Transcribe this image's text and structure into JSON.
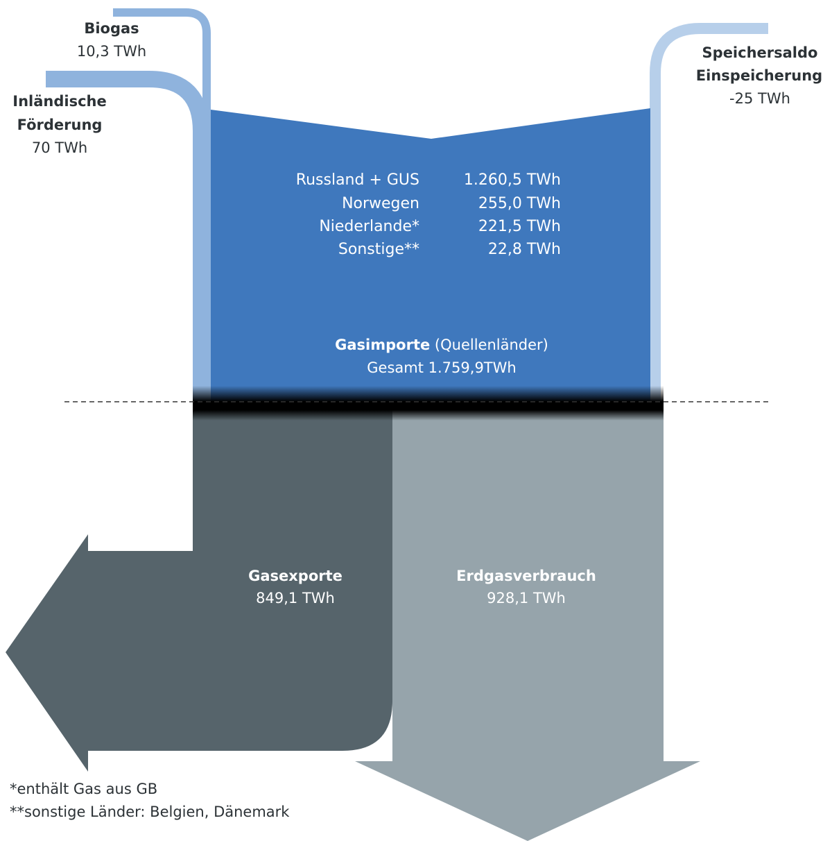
{
  "colors": {
    "inflow_light": "#8fb3dd",
    "inflow_pale": "#b7cfea",
    "imports": "#3f78bd",
    "exports": "#56646b",
    "consumption": "#96a4ab",
    "text_dark": "#2c3236",
    "text_light": "#ffffff"
  },
  "inflows": {
    "biogas": {
      "title": "Biogas",
      "value": "10,3 TWh"
    },
    "domestic": {
      "title_line1": "Inländische",
      "title_line2": "Förderung",
      "value": "70 TWh"
    },
    "storage": {
      "title_line1": "Speichersaldo",
      "title_line2": "Einspeicherung",
      "value": "-25 TWh"
    }
  },
  "imports": {
    "sources": [
      {
        "name": "Russland  + GUS",
        "value": "1.260,5 TWh"
      },
      {
        "name": "Norwegen",
        "value": "255,0 TWh"
      },
      {
        "name": "Niederlande*",
        "value": "221,5 TWh"
      },
      {
        "name": "Sonstige**",
        "value": "22,8 TWh"
      }
    ],
    "title_bold": "Gasimporte",
    "title_rest": " (Quellenländer)",
    "total": "Gesamt 1.759,9TWh"
  },
  "outflows": {
    "exports": {
      "title": "Gasexporte",
      "value": "849,1 TWh"
    },
    "consumption": {
      "title": "Erdgasverbrauch",
      "value": "928,1 TWh"
    }
  },
  "footnotes": [
    "*enthält Gas aus GB",
    "**sonstige Länder: Belgien, Dänemark"
  ]
}
